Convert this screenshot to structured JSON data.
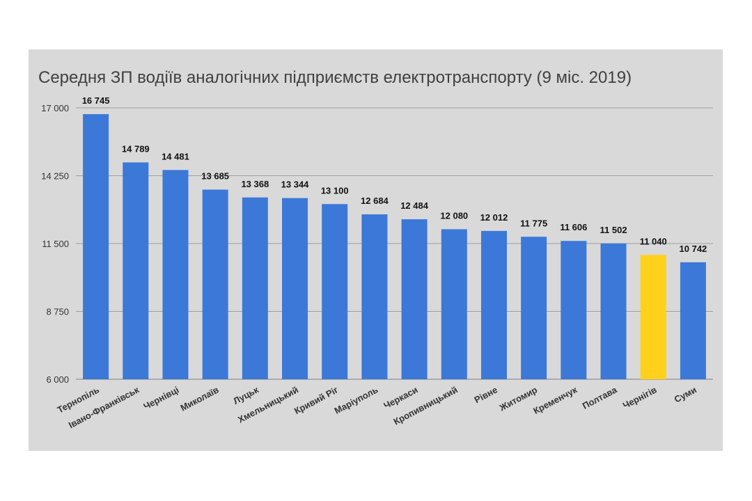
{
  "chart_data": {
    "type": "bar",
    "title": "Середня ЗП водіїв аналогічних підприємств електротранспорту (9 міс. 2019)",
    "xlabel": "",
    "ylabel": "",
    "ylim": [
      6000,
      17000
    ],
    "yticks": [
      6000,
      8750,
      11500,
      14250,
      17000
    ],
    "ytick_labels": [
      "6 000",
      "8 750",
      "11 500",
      "14 250",
      "17 000"
    ],
    "grid": true,
    "legend": "none",
    "categories": [
      "Тернопіль",
      "Івано-Франківськ",
      "Чернівці",
      "Миколаїв",
      "Луцьк",
      "Хмельницький",
      "Кривий Ріг",
      "Маріуполь",
      "Черкаси",
      "Кропивницький",
      "Рівне",
      "Житомир",
      "Кременчук",
      "Полтава",
      "Чернігів",
      "Суми"
    ],
    "values": [
      16745,
      14789,
      14481,
      13685,
      13368,
      13344,
      13100,
      12684,
      12484,
      12080,
      12012,
      11775,
      11606,
      11502,
      11040,
      10742
    ],
    "value_labels": [
      "16 745",
      "14 789",
      "14 481",
      "13 685",
      "13 368",
      "13 344",
      "13 100",
      "12 684",
      "12 484",
      "12 080",
      "12 012",
      "11 775",
      "11 606",
      "11 502",
      "11 040",
      "10 742"
    ],
    "highlight": "Чернігів",
    "colors": {
      "bar": "#3c78d8",
      "highlight": "#ffd11a",
      "background": "#d9d9d9",
      "grid": "#9e9e9e"
    }
  }
}
